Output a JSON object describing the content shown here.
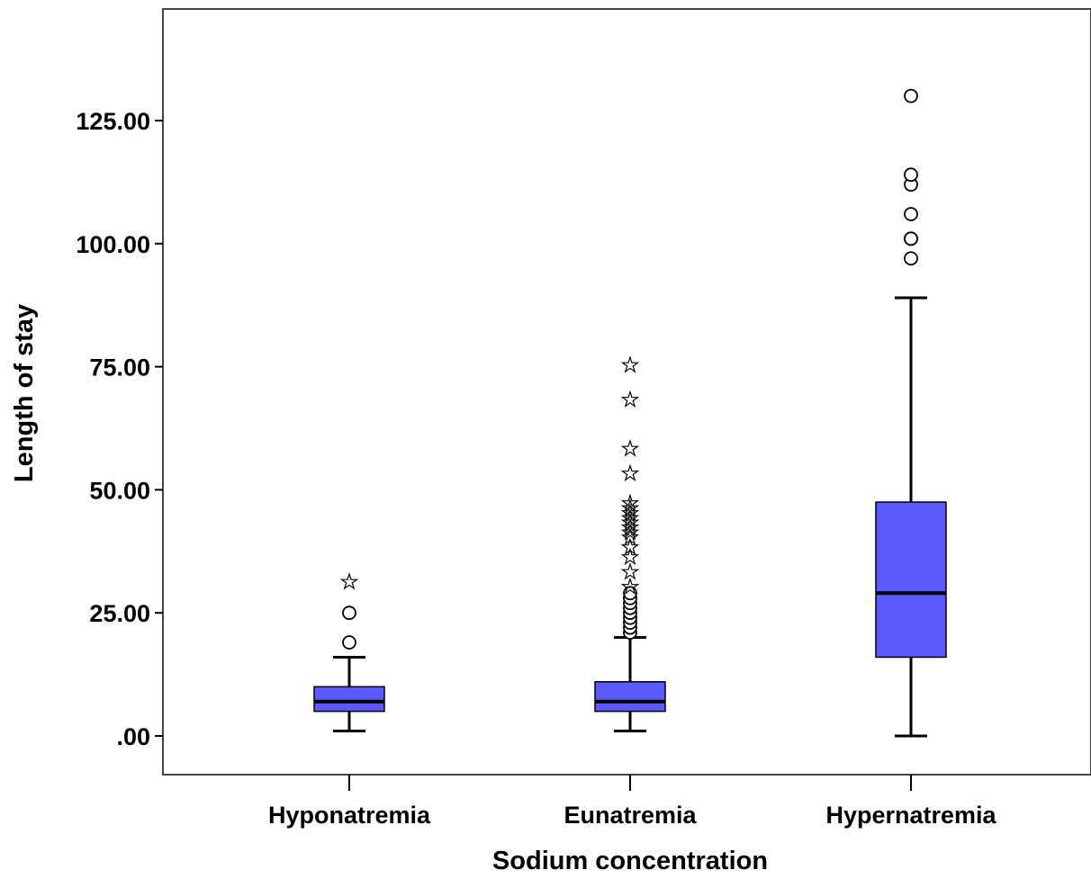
{
  "chart_data": {
    "type": "box",
    "xlabel": "Sodium concentration",
    "ylabel": "Length of stay",
    "ylim": [
      -8,
      147
    ],
    "yticks": [
      0,
      25,
      50,
      75,
      100,
      125
    ],
    "ytick_labels": [
      ".00",
      "25.00",
      "50.00",
      "75.00",
      "100.00",
      "125.00"
    ],
    "grid": false,
    "box_color": "#5a5aff",
    "categories": [
      "Hyponatremia",
      "Eunatremia",
      "Hypernatremia"
    ],
    "boxes": [
      {
        "category": "Hyponatremia",
        "min": 1,
        "q1": 5,
        "median": 7,
        "q3": 10,
        "max": 16,
        "outliers": [
          19,
          25
        ],
        "extremes": [
          32
        ]
      },
      {
        "category": "Eunatremia",
        "min": 1,
        "q1": 5,
        "median": 7,
        "q3": 11,
        "max": 20,
        "outliers": [
          21,
          22,
          23,
          24,
          25,
          26,
          27,
          28,
          29
        ],
        "extremes": [
          31,
          34,
          37,
          39,
          41,
          42,
          43,
          44,
          45,
          46,
          47,
          48,
          54,
          59,
          69,
          76
        ]
      },
      {
        "category": "Hypernatremia",
        "min": 0,
        "q1": 16,
        "median": 29,
        "q3": 47.5,
        "max": 89,
        "outliers": [
          97,
          101,
          101,
          106,
          112,
          114,
          130
        ],
        "extremes": []
      }
    ]
  }
}
